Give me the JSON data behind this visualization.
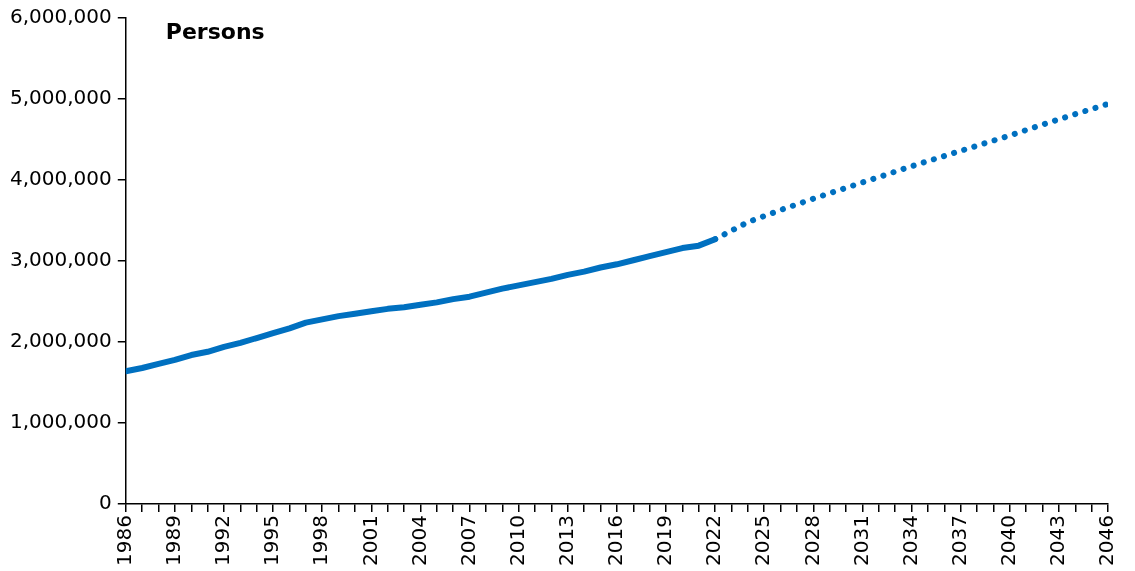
{
  "chart_data": {
    "type": "line",
    "ylabel": "Persons",
    "series": [
      {
        "color": "#0070c0",
        "line_style": "solid",
        "x": [
          1986,
          1987,
          1988,
          1989,
          1990,
          1991,
          1992,
          1993,
          1994,
          1995,
          1996,
          1997,
          1998,
          1999,
          2000,
          2001,
          2002,
          2003,
          2004,
          2005,
          2006,
          2007,
          2008,
          2009,
          2010,
          2011,
          2012,
          2013,
          2014,
          2015,
          2016,
          2017,
          2018,
          2019,
          2020,
          2021,
          2022
        ],
        "values": [
          1640000,
          1680000,
          1730000,
          1780000,
          1840000,
          1880000,
          1940000,
          1990000,
          2050000,
          2110000,
          2170000,
          2240000,
          2280000,
          2320000,
          2350000,
          2380000,
          2410000,
          2430000,
          2460000,
          2490000,
          2530000,
          2560000,
          2610000,
          2660000,
          2700000,
          2740000,
          2780000,
          2830000,
          2870000,
          2920000,
          2960000,
          3010000,
          3060000,
          3110000,
          3160000,
          3190000,
          3270000
        ]
      },
      {
        "color": "#0070c0",
        "line_style": "dotted",
        "x": [
          2022,
          2024,
          2026,
          2028,
          2031,
          2034,
          2037,
          2040,
          2043,
          2046
        ],
        "values": [
          3270000,
          3480000,
          3630000,
          3770000,
          3970000,
          4170000,
          4360000,
          4550000,
          4750000,
          4940000
        ]
      }
    ],
    "xlim": [
      1986,
      2046
    ],
    "xticks": [
      1986,
      {
        "value": 1987,
        "label": null
      },
      {
        "value": 1988,
        "label": null
      },
      1989,
      {
        "value": 1990,
        "label": null
      },
      {
        "value": 1991,
        "label": null
      },
      1992,
      {
        "value": 1993,
        "label": null
      },
      {
        "value": 1994,
        "label": null
      },
      1995,
      {
        "value": 1996,
        "label": null
      },
      {
        "value": 1997,
        "label": null
      },
      1998,
      {
        "value": 1999,
        "label": null
      },
      {
        "value": 2000,
        "label": null
      },
      2001,
      {
        "value": 2002,
        "label": null
      },
      {
        "value": 2003,
        "label": null
      },
      2004,
      {
        "value": 2005,
        "label": null
      },
      {
        "value": 2006,
        "label": null
      },
      2007,
      {
        "value": 2008,
        "label": null
      },
      {
        "value": 2009,
        "label": null
      },
      2010,
      {
        "value": 2011,
        "label": null
      },
      {
        "value": 2012,
        "label": null
      },
      2013,
      {
        "value": 2014,
        "label": null
      },
      {
        "value": 2015,
        "label": null
      },
      2016,
      {
        "value": 2017,
        "label": null
      },
      {
        "value": 2018,
        "label": null
      },
      2019,
      {
        "value": 2020,
        "label": null
      },
      {
        "value": 2021,
        "label": null
      },
      2022,
      {
        "value": 2023,
        "label": null
      },
      {
        "value": 2024,
        "label": null
      },
      2025,
      {
        "value": 2026,
        "label": null
      },
      {
        "value": 2027,
        "label": null
      },
      2028,
      {
        "value": 2029,
        "label": null
      },
      {
        "value": 2030,
        "label": null
      },
      2031,
      {
        "value": 2032,
        "label": null
      },
      {
        "value": 2033,
        "label": null
      },
      2034,
      {
        "value": 2035,
        "label": null
      },
      {
        "value": 2036,
        "label": null
      },
      2037,
      {
        "value": 2038,
        "label": null
      },
      {
        "value": 2039,
        "label": null
      },
      2040,
      {
        "value": 2041,
        "label": null
      },
      {
        "value": 2042,
        "label": null
      },
      2043,
      {
        "value": 2044,
        "label": null
      },
      {
        "value": 2045,
        "label": null
      },
      2046
    ],
    "ylim": [
      0,
      6000000
    ],
    "yticks": [
      0,
      {
        "value": 1000000,
        "label": "1,000,000"
      },
      {
        "value": 2000000,
        "label": "2,000,000"
      },
      {
        "value": 3000000,
        "label": "3,000,000"
      },
      {
        "value": 4000000,
        "label": "4,000,000"
      },
      {
        "value": 5000000,
        "label": "5,000,000"
      },
      {
        "value": 6000000,
        "label": "6,000,000"
      }
    ],
    "grid": false,
    "legend": false,
    "marker": "none"
  }
}
